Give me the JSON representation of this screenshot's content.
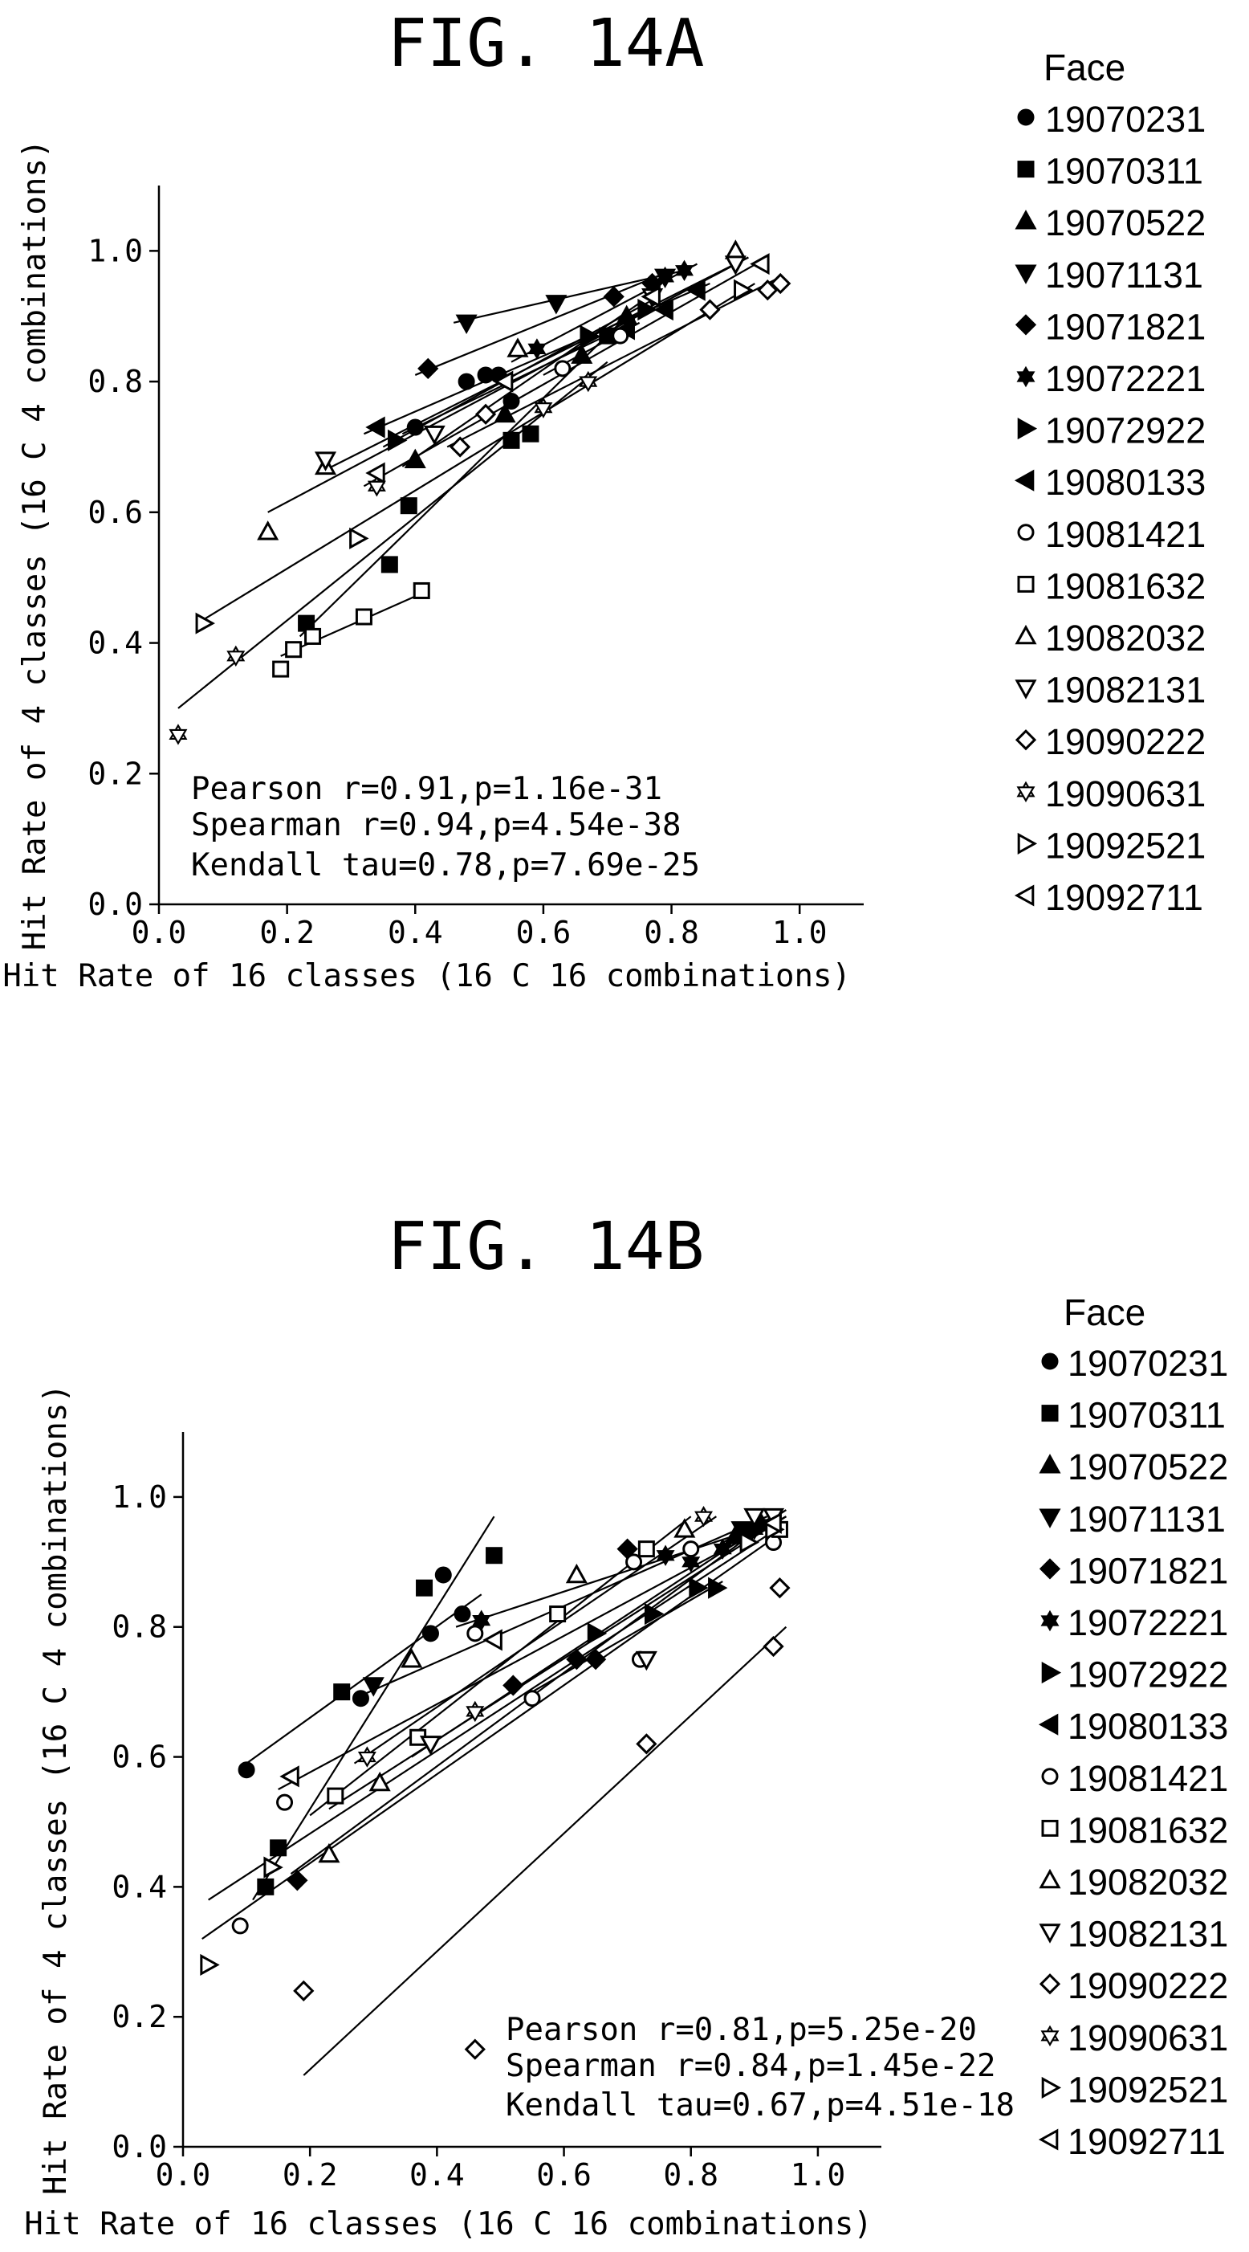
{
  "chart_data": [
    {
      "type": "scatter",
      "title": "FIG. 14A",
      "xlabel": "Hit Rate of 16 classes (16 C 16 combinations)",
      "ylabel": "Hit Rate of 4 classes (16 C 4 combinations)",
      "xlim": [
        0.0,
        1.1
      ],
      "ylim": [
        0.0,
        1.1
      ],
      "xticks": [
        "0.0",
        "0.2",
        "0.4",
        "0.6",
        "0.8",
        "1.0"
      ],
      "yticks": [
        "0.0",
        "0.2",
        "0.4",
        "0.6",
        "0.8",
        "1.0"
      ],
      "grid": false,
      "legend_title": "Face",
      "legend_position": "right",
      "stats": [
        "Pearson r=0.91,p=1.16e-31",
        "Spearman r=0.94,p=4.54e-38",
        "Kendall tau=0.78,p=7.69e-25"
      ],
      "series": [
        {
          "name": "19070231",
          "marker": "circle-filled",
          "points": [
            [
              0.4,
              0.73
            ],
            [
              0.48,
              0.8
            ],
            [
              0.51,
              0.81
            ],
            [
              0.53,
              0.81
            ],
            [
              0.55,
              0.77
            ]
          ],
          "fit": [
            [
              0.38,
              0.72
            ],
            [
              0.74,
              0.89
            ]
          ]
        },
        {
          "name": "19070311",
          "marker": "square-filled",
          "points": [
            [
              0.23,
              0.43
            ],
            [
              0.36,
              0.52
            ],
            [
              0.39,
              0.61
            ],
            [
              0.55,
              0.71
            ],
            [
              0.58,
              0.72
            ],
            [
              0.7,
              0.87
            ]
          ],
          "fit": [
            [
              0.22,
              0.41
            ],
            [
              0.72,
              0.89
            ]
          ]
        },
        {
          "name": "19070522",
          "marker": "triangle-up-filled",
          "points": [
            [
              0.4,
              0.68
            ],
            [
              0.54,
              0.75
            ],
            [
              0.66,
              0.84
            ],
            [
              0.73,
              0.9
            ]
          ],
          "fit": [
            [
              0.38,
              0.67
            ],
            [
              0.75,
              0.92
            ]
          ]
        },
        {
          "name": "19071131",
          "marker": "triangle-down-filled",
          "points": [
            [
              0.48,
              0.89
            ],
            [
              0.62,
              0.92
            ],
            [
              0.79,
              0.96
            ]
          ],
          "fit": [
            [
              0.46,
              0.89
            ],
            [
              0.82,
              0.97
            ]
          ]
        },
        {
          "name": "19071821",
          "marker": "diamond-filled",
          "points": [
            [
              0.42,
              0.82
            ],
            [
              0.71,
              0.93
            ],
            [
              0.77,
              0.95
            ]
          ],
          "fit": [
            [
              0.4,
              0.81
            ],
            [
              0.8,
              0.97
            ]
          ]
        },
        {
          "name": "19072221",
          "marker": "star-filled",
          "points": [
            [
              0.59,
              0.85
            ],
            [
              0.79,
              0.96
            ],
            [
              0.82,
              0.97
            ]
          ],
          "fit": [
            [
              0.55,
              0.83
            ],
            [
              0.84,
              0.98
            ]
          ]
        },
        {
          "name": "19072922",
          "marker": "triangle-right-filled",
          "points": [
            [
              0.37,
              0.71
            ],
            [
              0.67,
              0.87
            ],
            [
              0.76,
              0.91
            ]
          ],
          "fit": [
            [
              0.35,
              0.7
            ],
            [
              0.78,
              0.93
            ]
          ]
        },
        {
          "name": "19080133",
          "marker": "triangle-left-filled",
          "points": [
            [
              0.34,
              0.73
            ],
            [
              0.73,
              0.88
            ],
            [
              0.79,
              0.91
            ],
            [
              0.84,
              0.94
            ]
          ],
          "fit": [
            [
              0.32,
              0.72
            ],
            [
              0.86,
              0.95
            ]
          ]
        },
        {
          "name": "19081421",
          "marker": "circle-open",
          "points": [
            [
              0.63,
              0.82
            ],
            [
              0.72,
              0.87
            ]
          ],
          "fit": [
            [
              0.6,
              0.81
            ],
            [
              0.75,
              0.89
            ]
          ]
        },
        {
          "name": "19081632",
          "marker": "square-open",
          "points": [
            [
              0.19,
              0.36
            ],
            [
              0.21,
              0.39
            ],
            [
              0.24,
              0.41
            ],
            [
              0.32,
              0.44
            ],
            [
              0.41,
              0.48
            ]
          ],
          "fit": [
            [
              0.19,
              0.38
            ],
            [
              0.42,
              0.48
            ]
          ]
        },
        {
          "name": "19082032",
          "marker": "triangle-up-open",
          "points": [
            [
              0.17,
              0.57
            ],
            [
              0.26,
              0.67
            ],
            [
              0.56,
              0.85
            ],
            [
              0.9,
              1.0
            ]
          ],
          "fit": [
            [
              0.17,
              0.6
            ],
            [
              0.92,
              0.99
            ]
          ]
        },
        {
          "name": "19082131",
          "marker": "triangle-down-open",
          "points": [
            [
              0.26,
              0.68
            ],
            [
              0.43,
              0.72
            ],
            [
              0.77,
              0.93
            ],
            [
              0.9,
              0.98
            ]
          ],
          "fit": [
            [
              0.25,
              0.66
            ],
            [
              0.92,
              0.99
            ]
          ]
        },
        {
          "name": "19090222",
          "marker": "diamond-open",
          "points": [
            [
              0.47,
              0.7
            ],
            [
              0.51,
              0.75
            ],
            [
              0.86,
              0.91
            ],
            [
              0.95,
              0.94
            ],
            [
              0.97,
              0.95
            ]
          ],
          "fit": [
            [
              0.45,
              0.7
            ],
            [
              0.97,
              0.96
            ]
          ]
        },
        {
          "name": "19090631",
          "marker": "star-open",
          "points": [
            [
              0.03,
              0.26
            ],
            [
              0.12,
              0.38
            ],
            [
              0.34,
              0.64
            ],
            [
              0.6,
              0.76
            ],
            [
              0.67,
              0.8
            ]
          ],
          "fit": [
            [
              0.03,
              0.3
            ],
            [
              0.7,
              0.83
            ]
          ]
        },
        {
          "name": "19092521",
          "marker": "triangle-right-open",
          "points": [
            [
              0.07,
              0.43
            ],
            [
              0.31,
              0.56
            ],
            [
              0.91,
              0.94
            ]
          ],
          "fit": [
            [
              0.06,
              0.43
            ],
            [
              0.93,
              0.95
            ]
          ]
        },
        {
          "name": "19092711",
          "marker": "triangle-left-open",
          "points": [
            [
              0.34,
              0.66
            ],
            [
              0.54,
              0.8
            ],
            [
              0.77,
              0.93
            ],
            [
              0.94,
              0.98
            ]
          ],
          "fit": [
            [
              0.32,
              0.64
            ],
            [
              0.95,
              0.99
            ]
          ]
        }
      ]
    },
    {
      "type": "scatter",
      "title": "FIG. 14B",
      "xlabel": "Hit Rate of 16 classes (16 C 16 combinations)",
      "ylabel": "Hit Rate of 4 classes (16 C 4 combinations)",
      "xlim": [
        0.0,
        1.1
      ],
      "ylim": [
        0.0,
        1.1
      ],
      "xticks": [
        "0.0",
        "0.2",
        "0.4",
        "0.6",
        "0.8",
        "1.0"
      ],
      "yticks": [
        "0.0",
        "0.2",
        "0.4",
        "0.6",
        "0.8",
        "1.0"
      ],
      "grid": false,
      "legend_title": "Face",
      "legend_position": "right",
      "stats": [
        "Pearson r=0.81,p=5.25e-20",
        "Spearman r=0.84,p=1.45e-22",
        "Kendall tau=0.67,p=4.51e-18"
      ],
      "series": [
        {
          "name": "19070231",
          "marker": "circle-filled",
          "points": [
            [
              0.1,
              0.58
            ],
            [
              0.28,
              0.69
            ],
            [
              0.39,
              0.79
            ],
            [
              0.41,
              0.88
            ],
            [
              0.44,
              0.82
            ]
          ],
          "fit": [
            [
              0.1,
              0.59
            ],
            [
              0.47,
              0.85
            ]
          ]
        },
        {
          "name": "19070311",
          "marker": "square-filled",
          "points": [
            [
              0.13,
              0.4
            ],
            [
              0.15,
              0.46
            ],
            [
              0.25,
              0.7
            ],
            [
              0.38,
              0.86
            ],
            [
              0.49,
              0.91
            ]
          ],
          "fit": [
            [
              0.11,
              0.38
            ],
            [
              0.49,
              0.97
            ]
          ]
        },
        {
          "name": "19070522",
          "marker": "triangle-up-filled",
          "points": [
            [
              0.87,
              0.94
            ],
            [
              0.91,
              0.96
            ]
          ],
          "fit": [
            [
              0.85,
              0.93
            ],
            [
              0.93,
              0.97
            ]
          ]
        },
        {
          "name": "19071131",
          "marker": "triangle-down-filled",
          "points": [
            [
              0.3,
              0.71
            ],
            [
              0.88,
              0.95
            ]
          ],
          "fit": [
            [
              0.27,
              0.69
            ],
            [
              0.92,
              0.97
            ]
          ]
        },
        {
          "name": "19071821",
          "marker": "diamond-filled",
          "points": [
            [
              0.18,
              0.41
            ],
            [
              0.52,
              0.71
            ],
            [
              0.62,
              0.75
            ],
            [
              0.65,
              0.75
            ],
            [
              0.7,
              0.92
            ],
            [
              0.88,
              0.94
            ]
          ],
          "fit": [
            [
              0.17,
              0.42
            ],
            [
              0.92,
              0.96
            ]
          ]
        },
        {
          "name": "19072221",
          "marker": "star-filled",
          "points": [
            [
              0.47,
              0.81
            ],
            [
              0.76,
              0.91
            ],
            [
              0.8,
              0.9
            ],
            [
              0.85,
              0.92
            ],
            [
              0.9,
              0.95
            ]
          ],
          "fit": [
            [
              0.43,
              0.8
            ],
            [
              0.93,
              0.96
            ]
          ]
        },
        {
          "name": "19072922",
          "marker": "triangle-right-filled",
          "points": [
            [
              0.65,
              0.79
            ],
            [
              0.74,
              0.82
            ],
            [
              0.81,
              0.86
            ],
            [
              0.84,
              0.86
            ]
          ],
          "fit": [
            [
              0.55,
              0.7
            ],
            [
              0.85,
              0.87
            ]
          ]
        },
        {
          "name": "19080133",
          "marker": "triangle-left-filled",
          "points": [
            [
              0.93,
              0.96
            ]
          ],
          "fit": [
            [
              0.88,
              0.93
            ],
            [
              0.95,
              0.97
            ]
          ]
        },
        {
          "name": "19081421",
          "marker": "circle-open",
          "points": [
            [
              0.09,
              0.34
            ],
            [
              0.16,
              0.53
            ],
            [
              0.46,
              0.79
            ],
            [
              0.55,
              0.69
            ],
            [
              0.71,
              0.9
            ],
            [
              0.72,
              0.75
            ],
            [
              0.8,
              0.92
            ],
            [
              0.93,
              0.93
            ]
          ],
          "fit": [
            [
              0.03,
              0.32
            ],
            [
              0.95,
              0.95
            ]
          ]
        },
        {
          "name": "19081632",
          "marker": "square-open",
          "points": [
            [
              0.24,
              0.54
            ],
            [
              0.37,
              0.63
            ],
            [
              0.59,
              0.82
            ],
            [
              0.73,
              0.92
            ],
            [
              0.94,
              0.95
            ]
          ],
          "fit": [
            [
              0.23,
              0.52
            ],
            [
              0.95,
              0.97
            ]
          ]
        },
        {
          "name": "19082032",
          "marker": "triangle-up-open",
          "points": [
            [
              0.23,
              0.45
            ],
            [
              0.31,
              0.56
            ],
            [
              0.36,
              0.75
            ],
            [
              0.62,
              0.88
            ],
            [
              0.79,
              0.95
            ]
          ],
          "fit": [
            [
              0.2,
              0.51
            ],
            [
              0.8,
              0.97
            ]
          ]
        },
        {
          "name": "19082131",
          "marker": "triangle-down-open",
          "points": [
            [
              0.39,
              0.62
            ],
            [
              0.73,
              0.75
            ],
            [
              0.9,
              0.97
            ],
            [
              0.93,
              0.97
            ]
          ],
          "fit": [
            [
              0.36,
              0.6
            ],
            [
              0.95,
              0.98
            ]
          ]
        },
        {
          "name": "19090222",
          "marker": "diamond-open",
          "points": [
            [
              0.19,
              0.24
            ],
            [
              0.46,
              0.15
            ],
            [
              0.73,
              0.62
            ],
            [
              0.93,
              0.77
            ],
            [
              0.94,
              0.86
            ]
          ],
          "fit": [
            [
              0.19,
              0.11
            ],
            [
              0.95,
              0.8
            ]
          ]
        },
        {
          "name": "19090631",
          "marker": "star-open",
          "points": [
            [
              0.29,
              0.6
            ],
            [
              0.46,
              0.67
            ],
            [
              0.82,
              0.97
            ]
          ],
          "fit": [
            [
              0.27,
              0.59
            ],
            [
              0.84,
              0.97
            ]
          ]
        },
        {
          "name": "19092521",
          "marker": "triangle-right-open",
          "points": [
            [
              0.04,
              0.28
            ],
            [
              0.14,
              0.43
            ],
            [
              0.89,
              0.93
            ],
            [
              0.93,
              0.95
            ]
          ],
          "fit": [
            [
              0.04,
              0.38
            ],
            [
              0.95,
              0.96
            ]
          ]
        },
        {
          "name": "19092711",
          "marker": "triangle-left-open",
          "points": [
            [
              0.17,
              0.57
            ],
            [
              0.49,
              0.78
            ],
            [
              0.93,
              0.96
            ]
          ],
          "fit": [
            [
              0.15,
              0.55
            ],
            [
              0.95,
              0.97
            ]
          ]
        }
      ]
    }
  ]
}
